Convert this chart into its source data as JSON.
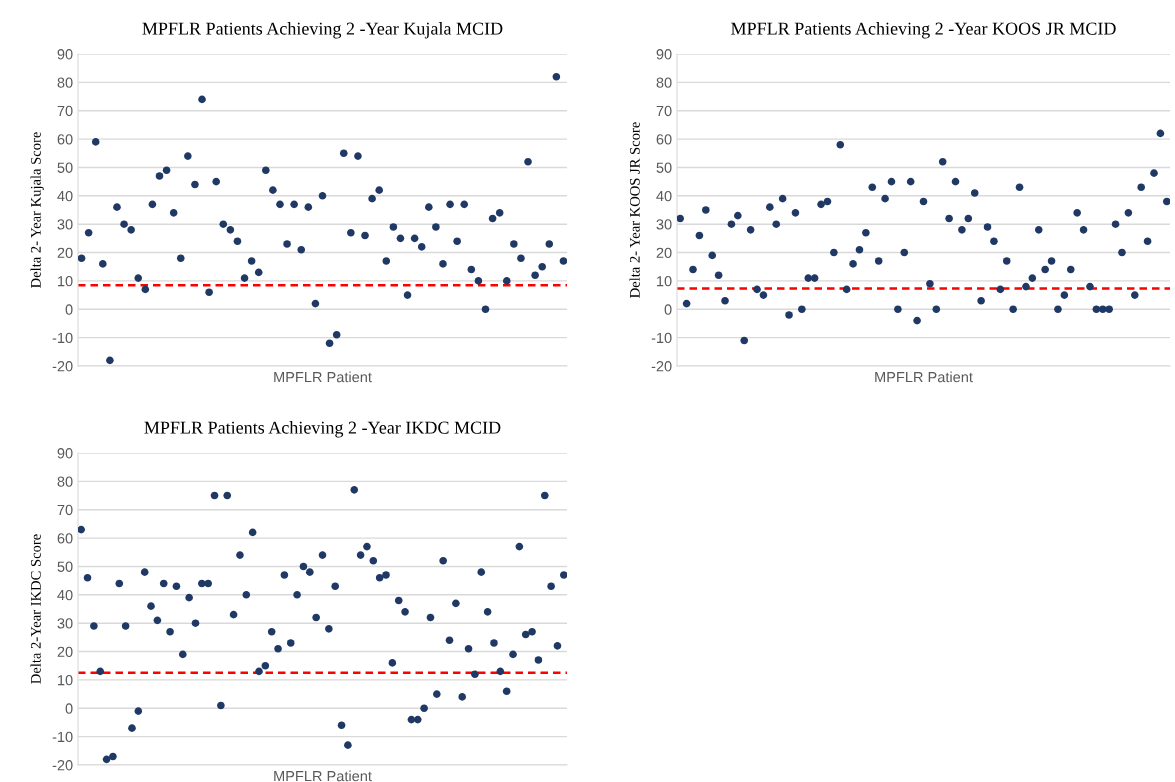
{
  "chart_data": [
    {
      "type": "scatter",
      "title": "MPFLR Patients Achieving 2 -Year Kujala MCID",
      "xlabel": "MPFLR Patient",
      "ylabel": "Delta 2- Year Kujala Score",
      "categories": [
        null,
        null,
        null,
        null,
        null,
        null,
        null,
        null,
        null,
        null,
        null,
        null,
        null,
        null,
        null,
        null,
        null,
        null,
        null,
        null,
        null,
        null,
        null,
        null,
        null,
        null,
        null,
        null,
        null,
        null,
        null,
        null,
        null,
        null,
        null,
        null,
        null,
        null,
        null,
        null,
        null,
        null,
        null,
        null,
        null,
        null,
        null,
        null,
        null,
        null,
        null,
        null,
        null,
        null,
        null,
        null,
        null,
        null,
        null,
        null,
        null,
        null,
        null,
        null,
        null,
        null,
        null,
        null,
        null
      ],
      "series": [
        {
          "color": "#1f3864",
          "values": [
            18,
            27,
            59,
            16,
            -18,
            36,
            30,
            28,
            11,
            7,
            37,
            47,
            49,
            34,
            18,
            54,
            44,
            74,
            6,
            45,
            30,
            28,
            24,
            11,
            17,
            13,
            49,
            42,
            37,
            23,
            37,
            21,
            36,
            2,
            40,
            -12,
            -9,
            55,
            27,
            54,
            26,
            39,
            42,
            17,
            29,
            25,
            5,
            25,
            22,
            36,
            29,
            16,
            37,
            24,
            37,
            14,
            10,
            0,
            32,
            34,
            10,
            23,
            18,
            52,
            12,
            15,
            23,
            82,
            17
          ]
        }
      ],
      "ylim": [
        -20,
        90
      ],
      "yticks": [
        -20,
        -10,
        0,
        10,
        20,
        30,
        40,
        50,
        60,
        70,
        80,
        90
      ],
      "grid": "y",
      "marker": "circle",
      "tick_labels": "y",
      "ref_lines": [
        {
          "axis": "y",
          "value": 8.5,
          "color": "#ff0000",
          "line_style": "dashed"
        }
      ]
    },
    {
      "type": "scatter",
      "title": "MPFLR Patients Achieving 2 -Year KOOS JR MCID",
      "xlabel": "MPFLR Patient",
      "ylabel": "Delta 2- Year KOOS JR Score",
      "categories": [
        null,
        null,
        null,
        null,
        null,
        null,
        null,
        null,
        null,
        null,
        null,
        null,
        null,
        null,
        null,
        null,
        null,
        null,
        null,
        null,
        null,
        null,
        null,
        null,
        null,
        null,
        null,
        null,
        null,
        null,
        null,
        null,
        null,
        null,
        null,
        null,
        null,
        null,
        null,
        null,
        null,
        null,
        null,
        null,
        null,
        null,
        null,
        null,
        null,
        null,
        null,
        null,
        null,
        null,
        null,
        null,
        null,
        null,
        null,
        null,
        null,
        null,
        null,
        null,
        null,
        null,
        null,
        null,
        null,
        null,
        null,
        null,
        null,
        null,
        null,
        null,
        null
      ],
      "series": [
        {
          "color": "#1f3864",
          "values": [
            32,
            2,
            14,
            26,
            35,
            19,
            12,
            3,
            30,
            33,
            -11,
            28,
            7,
            5,
            36,
            30,
            39,
            -2,
            34,
            0,
            11,
            11,
            37,
            38,
            20,
            58,
            7,
            16,
            21,
            27,
            43,
            17,
            39,
            45,
            0,
            20,
            45,
            -4,
            38,
            9,
            0,
            52,
            32,
            45,
            28,
            32,
            41,
            3,
            29,
            24,
            7,
            17,
            0,
            43,
            8,
            11,
            28,
            14,
            17,
            0,
            5,
            14,
            34,
            28,
            8,
            0,
            0,
            0,
            30,
            20,
            34,
            5,
            43,
            24,
            48,
            62,
            38
          ]
        }
      ],
      "ylim": [
        -20,
        90
      ],
      "yticks": [
        -20,
        -10,
        0,
        10,
        20,
        30,
        40,
        50,
        60,
        70,
        80,
        90
      ],
      "grid": "y",
      "marker": "circle",
      "tick_labels": "y",
      "ref_lines": [
        {
          "axis": "y",
          "value": 7.3,
          "color": "#ff0000",
          "line_style": "dashed"
        }
      ]
    },
    {
      "type": "scatter",
      "title": "MPFLR Patients Achieving 2 -Year IKDC MCID",
      "xlabel": "MPFLR Patient",
      "ylabel": "Delta 2-Year IKDC Score",
      "categories": [
        null,
        null,
        null,
        null,
        null,
        null,
        null,
        null,
        null,
        null,
        null,
        null,
        null,
        null,
        null,
        null,
        null,
        null,
        null,
        null,
        null,
        null,
        null,
        null,
        null,
        null,
        null,
        null,
        null,
        null,
        null,
        null,
        null,
        null,
        null,
        null,
        null,
        null,
        null,
        null,
        null,
        null,
        null,
        null,
        null,
        null,
        null,
        null,
        null,
        null,
        null,
        null,
        null,
        null,
        null,
        null,
        null,
        null,
        null,
        null,
        null,
        null,
        null,
        null,
        null,
        null,
        null,
        null,
        null,
        null,
        null,
        null,
        null,
        null,
        null,
        null,
        null
      ],
      "series": [
        {
          "color": "#1f3864",
          "values": [
            63,
            46,
            29,
            13,
            -18,
            -17,
            44,
            29,
            -7,
            -1,
            48,
            36,
            31,
            44,
            27,
            43,
            19,
            39,
            30,
            44,
            44,
            75,
            1,
            75,
            33,
            54,
            40,
            62,
            13,
            15,
            27,
            21,
            47,
            23,
            40,
            50,
            48,
            32,
            54,
            28,
            43,
            -6,
            -13,
            77,
            54,
            57,
            52,
            46,
            47,
            16,
            38,
            34,
            -4,
            -4,
            0,
            32,
            5,
            52,
            24,
            37,
            4,
            21,
            12,
            48,
            34,
            23,
            13,
            6,
            19,
            57,
            26,
            27,
            17,
            75,
            43,
            22,
            47
          ]
        }
      ],
      "ylim": [
        -20,
        90
      ],
      "yticks": [
        -20,
        -10,
        0,
        10,
        20,
        30,
        40,
        50,
        60,
        70,
        80,
        90
      ],
      "grid": "y",
      "marker": "circle",
      "tick_labels": "y",
      "ref_lines": [
        {
          "axis": "y",
          "value": 12.5,
          "color": "#ff0000",
          "line_style": "dashed"
        }
      ]
    }
  ]
}
